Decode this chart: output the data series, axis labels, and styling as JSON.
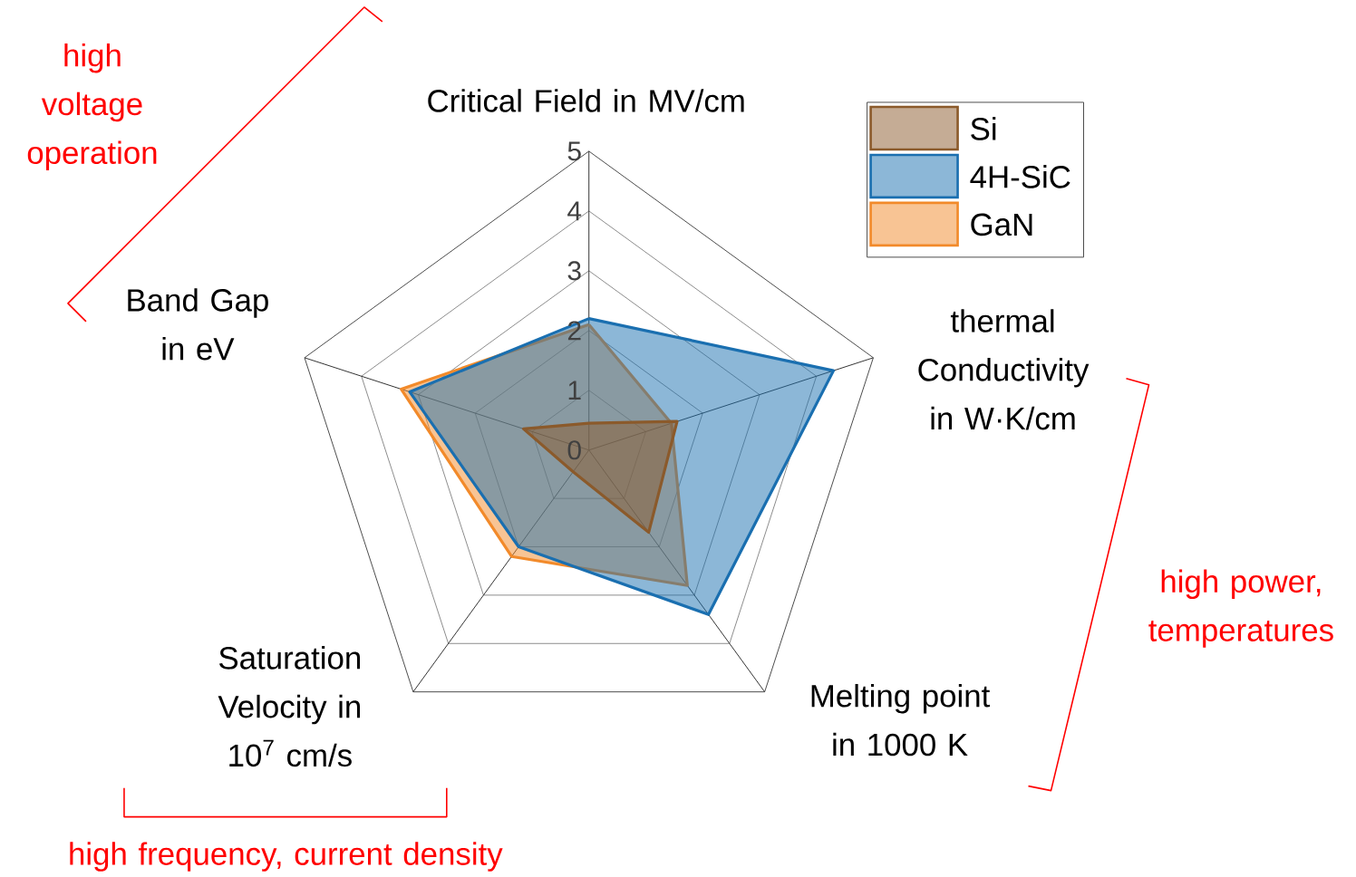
{
  "chart_data": {
    "type": "radar",
    "categories": [
      "Critical Field in MV/cm",
      "thermal Conductivity in W·K/cm",
      "Melting point in 1000 K",
      "Saturation Velocity in 10$^{7}$ cm/s",
      "Band Gap in eV"
    ],
    "series": [
      {
        "name": "Si",
        "color": "#8b5a2b",
        "values": [
          0.45,
          1.55,
          1.7,
          0.45,
          1.15
        ]
      },
      {
        "name": "4H-SiC",
        "color": "#1a6fb0",
        "values": [
          2.2,
          4.3,
          3.4,
          2.0,
          3.15
        ]
      },
      {
        "name": "GaN",
        "color": "#f28a2a",
        "values": [
          2.1,
          1.45,
          2.8,
          2.2,
          3.3
        ]
      }
    ],
    "ylim": [
      0,
      5
    ],
    "yticks": [
      0,
      1,
      2,
      3,
      4,
      5
    ],
    "grid": true,
    "legend": "top right",
    "annotations": [
      "high voltage operation",
      "high power, temperatures",
      "high frequency, current density"
    ]
  }
}
